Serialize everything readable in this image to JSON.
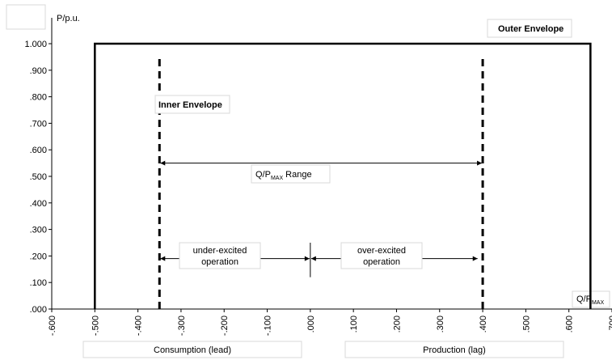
{
  "chart_data": {
    "type": "line",
    "title": "",
    "ylabel": "P/p.u.",
    "xlabel_main": "Q/P",
    "xlabel_sub": "MAX",
    "xlim": [
      -0.6,
      0.7
    ],
    "ylim": [
      0,
      1.0
    ],
    "x_ticks": [
      -0.6,
      -0.5,
      -0.4,
      -0.3,
      -0.2,
      -0.1,
      0.0,
      0.1,
      0.2,
      0.3,
      0.4,
      0.5,
      0.6,
      0.7
    ],
    "x_tick_labels": [
      "-.600",
      "-.500",
      "-.400",
      "-.300",
      "-.200",
      "-.100",
      ".000",
      ".100",
      ".200",
      ".300",
      ".400",
      ".500",
      ".600",
      ".700"
    ],
    "y_ticks": [
      0,
      0.1,
      0.2,
      0.3,
      0.4,
      0.5,
      0.6,
      0.7,
      0.8,
      0.9,
      1.0
    ],
    "y_tick_labels": [
      ".000",
      ".100",
      ".200",
      ".300",
      ".400",
      ".500",
      ".600",
      ".700",
      ".800",
      ".900",
      "1.000"
    ],
    "outer_envelope": {
      "label": "Outer Envelope",
      "x": [
        -0.5,
        -0.5,
        0.65,
        0.65
      ],
      "y": [
        0,
        1.0,
        1.0,
        0
      ]
    },
    "inner_envelope": {
      "label": "Inner Envelope",
      "lead_x": -0.35,
      "lag_x": 0.4,
      "y_top": 0.96
    },
    "range_arrow": {
      "label_main": "Q/P",
      "label_sub": "MAX",
      "label_tail": " Range",
      "x_from": -0.35,
      "x_to": 0.4,
      "y": 0.55
    },
    "under_excited": {
      "line1": "under-excited",
      "line2": "operation",
      "x_from": -0.35,
      "x_to": 0.0,
      "y": 0.19
    },
    "over_excited": {
      "line1": "over-excited",
      "line2": "operation",
      "x_from": 0.0,
      "x_to": 0.39,
      "y": 0.19
    },
    "zero_marker": {
      "x": 0.0,
      "y_from": 0.12,
      "y_to": 0.25
    },
    "bottom_labels": {
      "left": "Consumption (lead)",
      "right": "Production (lag)"
    },
    "grid": false,
    "legend": "none"
  }
}
